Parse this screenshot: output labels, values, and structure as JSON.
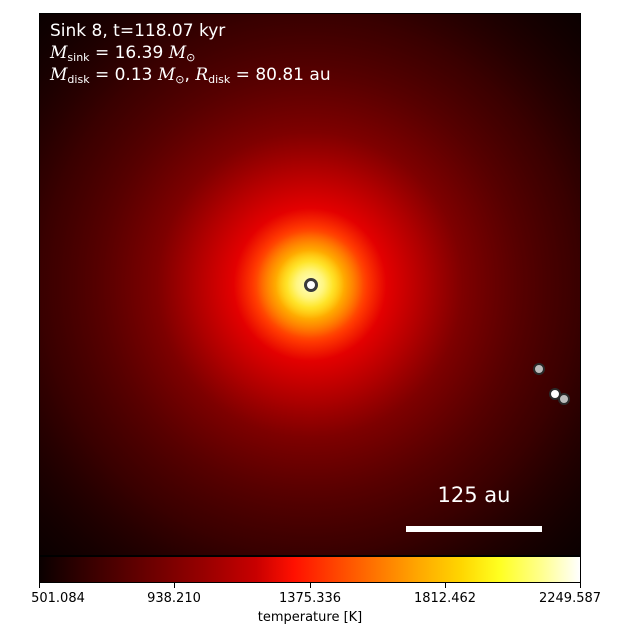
{
  "annotation": {
    "line1": "Sink 8, t=118.07 kyr",
    "m_sink_symbol": "M",
    "m_sink_sub": "sink",
    "m_sink_value": " = 16.39 ",
    "m_sink_unit": "M",
    "m_sink_unit_sub": "⊙",
    "m_disk_symbol": "M",
    "m_disk_sub": "disk",
    "m_disk_value": " = 0.13 ",
    "m_disk_unit": "M",
    "m_disk_unit_sub": "⊙",
    "r_disk_sep": ", ",
    "r_disk_symbol": "R",
    "r_disk_sub": "disk",
    "r_disk_value": " = 80.81 au"
  },
  "scale_bar": {
    "label": "125 au"
  },
  "colorbar": {
    "label": "temperature [K]",
    "ticks": [
      "501.084",
      "938.210",
      "1375.336",
      "1812.462",
      "2249.587"
    ],
    "colormap": "hot",
    "range": [
      501.084,
      2249.587
    ]
  },
  "colors": {
    "background": "#ffffff",
    "text_on_image": "#ffffff",
    "sink_marker_edge": "#3a3a3a"
  }
}
